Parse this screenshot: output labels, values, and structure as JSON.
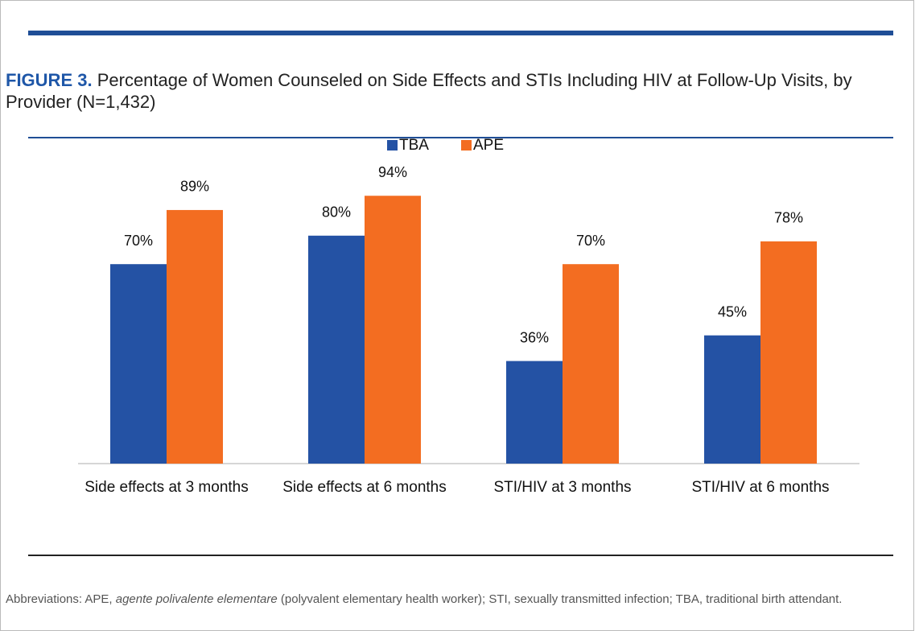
{
  "chart_data": {
    "type": "bar",
    "figure_label": "FIGURE 3.",
    "title": "Percentage of Women Counseled on Side Effects and STIs Including HIV at Follow-Up Visits, by Provider (N=1,432)",
    "categories": [
      "Side effects at 3 months",
      "Side effects at 6 months",
      "STI/HIV at 3 months",
      "STI/HIV at 6 months"
    ],
    "series": [
      {
        "name": "TBA",
        "color": "#2452a4",
        "values": [
          70,
          80,
          36,
          45
        ],
        "value_labels": [
          "70%",
          "80%",
          "36%",
          "45%"
        ]
      },
      {
        "name": "APE",
        "color": "#f36d21",
        "values": [
          89,
          94,
          70,
          78
        ],
        "value_labels": [
          "89%",
          "94%",
          "70%",
          "78%"
        ]
      }
    ],
    "ylim": [
      0,
      100
    ],
    "legend": "top",
    "footnote": [
      "Abbreviations: APE, ",
      "agente polivalente elementare",
      " (polyvalent elementary health worker); STI, sexually transmitted infection; TBA, traditional birth attendant."
    ]
  }
}
